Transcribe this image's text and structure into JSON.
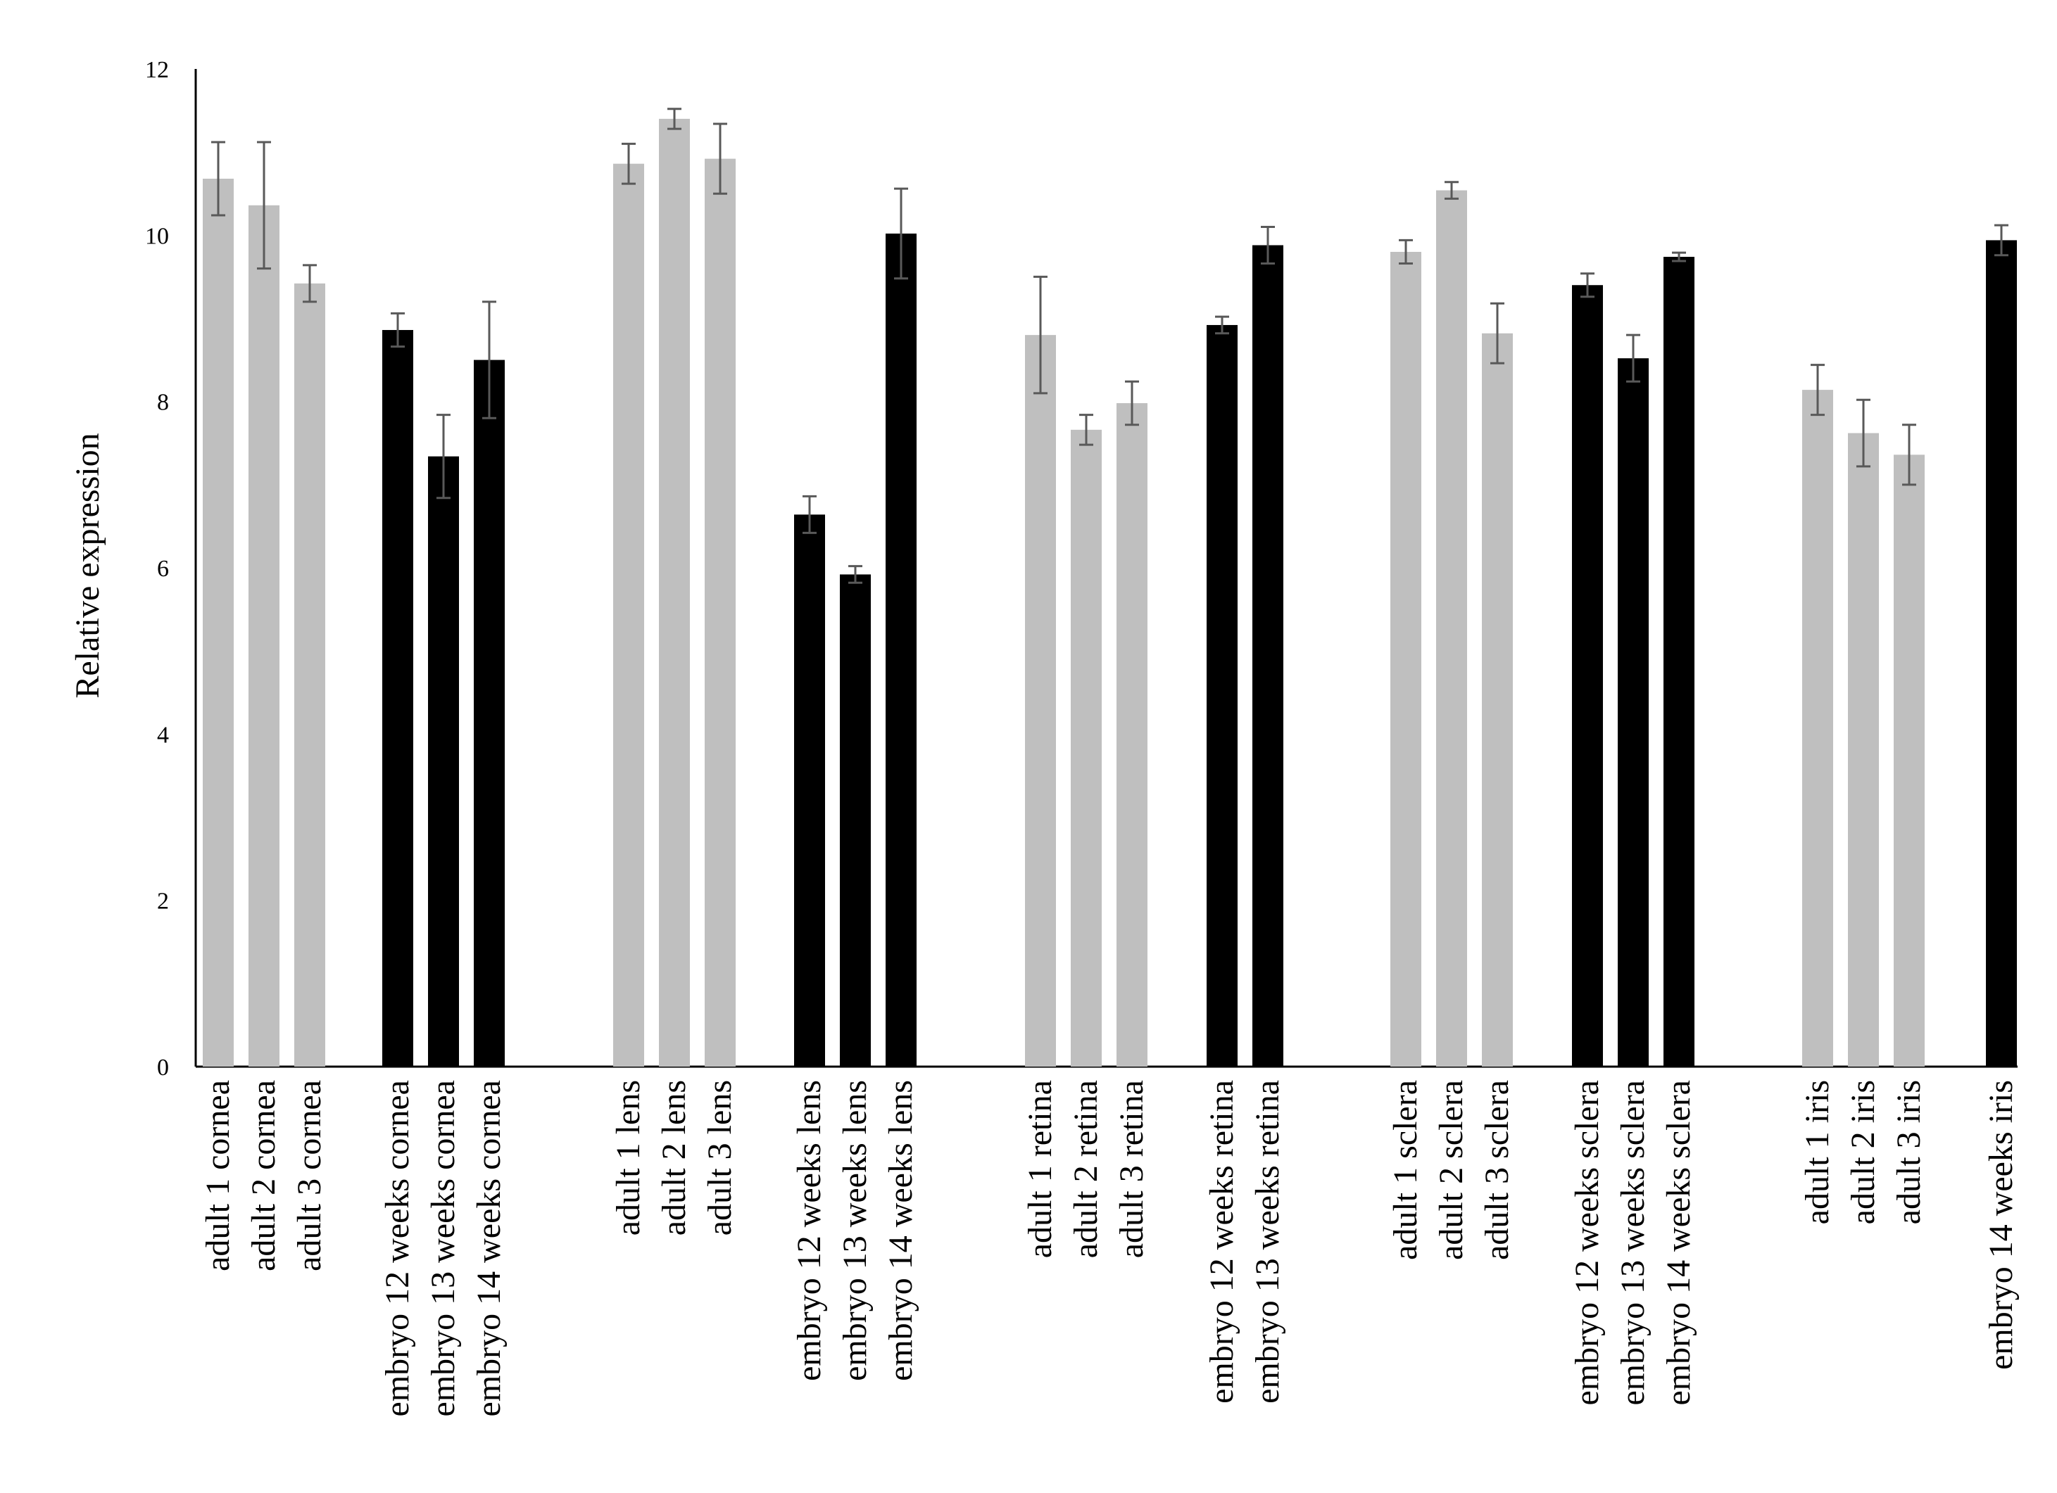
{
  "chart_data": {
    "type": "bar",
    "title": "",
    "xlabel": "",
    "ylabel": "Relative expression",
    "ylim": [
      0,
      12
    ],
    "yticks": [
      0,
      2,
      4,
      6,
      8,
      10,
      12
    ],
    "grid": false,
    "legend": "none",
    "colors": {
      "adult": "#bfbfbf",
      "embryo": "#000000",
      "error_bar": "#595959",
      "axis": "#000000"
    },
    "categories": [
      "adult 1 cornea",
      "adult 2 cornea",
      "adult 3 cornea",
      "embryo 12 weeks cornea",
      "embryo 13 weeks cornea",
      "embryo 14 weeks cornea",
      "adult 1 lens",
      "adult 2 lens",
      "adult 3 lens",
      "embryo 12 weeks lens",
      "embryo 13 weeks lens",
      "embryo 14 weeks lens",
      "adult 1 retina",
      "adult 2 retina",
      "adult 3 retina",
      "embryo 12 weeks retina",
      "embryo 13 weeks retina",
      "adult 1 sclera",
      "adult 2 sclera",
      "adult 3 sclera",
      "embryo 12 weeks sclera",
      "embryo 13 weeks sclera",
      "embryo 14 weeks sclera",
      "adult 1 iris",
      "adult 2 iris",
      "adult 3 iris",
      "embryo 14 weeks iris"
    ],
    "groups": [
      "adult",
      "adult",
      "adult",
      "embryo",
      "embryo",
      "embryo",
      "adult",
      "adult",
      "adult",
      "embryo",
      "embryo",
      "embryo",
      "adult",
      "adult",
      "adult",
      "embryo",
      "embryo",
      "adult",
      "adult",
      "adult",
      "embryo",
      "embryo",
      "embryo",
      "adult",
      "adult",
      "adult",
      "embryo"
    ],
    "values": [
      10.68,
      10.36,
      9.42,
      8.86,
      7.34,
      8.5,
      10.86,
      11.4,
      10.92,
      6.64,
      5.92,
      10.02,
      8.8,
      7.66,
      7.98,
      8.92,
      9.88,
      9.8,
      10.54,
      8.82,
      9.4,
      8.52,
      9.74,
      8.14,
      7.62,
      7.36,
      9.94
    ],
    "errors": [
      0.44,
      0.76,
      0.22,
      0.2,
      0.5,
      0.7,
      0.24,
      0.12,
      0.42,
      0.22,
      0.1,
      0.54,
      0.7,
      0.18,
      0.26,
      0.1,
      0.22,
      0.14,
      0.1,
      0.36,
      0.14,
      0.28,
      0.05,
      0.3,
      0.4,
      0.36,
      0.18
    ]
  }
}
